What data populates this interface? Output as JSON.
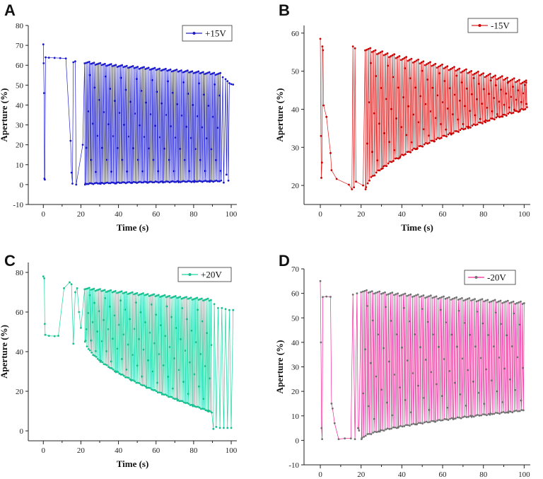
{
  "chart_data": [
    {
      "panel": "A",
      "type": "line",
      "legend": "+15V",
      "color": "#2222cc",
      "marker_color": "#1a1acc",
      "xlabel": "Time (s)",
      "ylabel": "Aperture (%)",
      "xlim": [
        -8,
        103
      ],
      "ylim": [
        -10,
        80
      ],
      "xticks": [
        0,
        20,
        40,
        60,
        80,
        100
      ],
      "yticks": [
        -10,
        0,
        10,
        20,
        30,
        40,
        50,
        60,
        70,
        80
      ],
      "start_points": [
        [
          0,
          70.5
        ],
        [
          0.2,
          61
        ],
        [
          0.4,
          46
        ],
        [
          0.6,
          3
        ],
        [
          0.8,
          2.5
        ],
        [
          1.2,
          64
        ],
        [
          3,
          63.8
        ],
        [
          6,
          63.7
        ],
        [
          9,
          63.6
        ],
        [
          12,
          63.4
        ],
        [
          14.5,
          22
        ],
        [
          15,
          6
        ],
        [
          15.5,
          0.5
        ],
        [
          16,
          61.5
        ],
        [
          17,
          62
        ],
        [
          17.5,
          0
        ],
        [
          21,
          20
        ]
      ],
      "osc": {
        "start": 22,
        "end": 95,
        "period": 0.83,
        "hi_start": 61.5,
        "hi_end": 55.5,
        "lo_start": 0,
        "lo_end": 1.5
      },
      "tail_points": [
        [
          95.5,
          54
        ],
        [
          96,
          1
        ],
        [
          97,
          53
        ],
        [
          97.5,
          5
        ],
        [
          98,
          52
        ],
        [
          98.5,
          2
        ],
        [
          99,
          51
        ],
        [
          100,
          50.5
        ],
        [
          101,
          50.3
        ]
      ]
    },
    {
      "panel": "B",
      "type": "line",
      "legend": "-15V",
      "color": "#e02020",
      "marker_color": "#cc0000",
      "xlabel": "Time (s)",
      "ylabel": "Aperture (%)",
      "xlim": [
        -8,
        103
      ],
      "ylim": [
        15,
        62
      ],
      "xticks": [
        0,
        20,
        40,
        60,
        80,
        100
      ],
      "yticks": [
        20,
        30,
        40,
        50,
        60
      ],
      "start_points": [
        [
          0,
          58.5
        ],
        [
          0.3,
          33
        ],
        [
          0.5,
          22
        ],
        [
          0.8,
          26
        ],
        [
          1,
          56.5
        ],
        [
          1.3,
          55.5
        ],
        [
          1.6,
          41
        ],
        [
          3,
          38
        ],
        [
          5,
          28.5
        ],
        [
          5.5,
          24
        ],
        [
          8,
          21.7
        ],
        [
          14,
          20.2
        ],
        [
          15.5,
          19
        ],
        [
          16,
          56.5
        ],
        [
          16.5,
          19.5
        ],
        [
          17,
          56
        ],
        [
          17.5,
          21
        ],
        [
          21,
          20
        ]
      ],
      "osc": {
        "start": 22,
        "end": 101,
        "period": 0.84,
        "hi_start": 56,
        "hi_end": 47,
        "lo_start": 19,
        "lo_end": 40
      },
      "tail_points": [
        [
          101,
          47
        ]
      ]
    },
    {
      "panel": "C",
      "type": "line",
      "legend": "+20V",
      "color": "#1ed6a0",
      "marker_color": "#16c090",
      "xlabel": "Time (s)",
      "ylabel": "Aperture (%)",
      "xlim": [
        -8,
        103
      ],
      "ylim": [
        -5,
        85
      ],
      "xticks": [
        0,
        20,
        40,
        60,
        80,
        100
      ],
      "yticks": [
        0,
        20,
        40,
        60,
        80
      ],
      "start_points": [
        [
          0,
          78
        ],
        [
          0.5,
          77
        ],
        [
          0.8,
          54
        ],
        [
          1,
          48.5
        ],
        [
          3,
          48
        ],
        [
          6,
          47.8
        ],
        [
          8,
          48
        ],
        [
          11,
          72
        ],
        [
          14,
          75
        ],
        [
          15,
          74
        ],
        [
          16,
          44
        ],
        [
          17,
          70
        ],
        [
          18,
          72
        ],
        [
          19,
          60
        ],
        [
          20,
          52
        ]
      ],
      "osc": {
        "start": 22,
        "end": 90,
        "period": 0.82,
        "hi_start": 72,
        "hi_end": 66,
        "lo_start": 45,
        "lo_end": 9
      },
      "tail_points": [
        [
          90.5,
          1
        ],
        [
          91,
          64
        ],
        [
          92,
          2
        ],
        [
          93,
          62
        ],
        [
          94,
          1.5
        ],
        [
          95,
          62
        ],
        [
          96,
          1.5
        ],
        [
          97,
          61.5
        ],
        [
          98,
          1.5
        ],
        [
          99,
          61
        ],
        [
          100,
          1.5
        ],
        [
          101,
          61
        ]
      ]
    },
    {
      "panel": "D",
      "type": "line",
      "legend": "-20V",
      "color": "#ee2a9a",
      "marker_color": "#707070",
      "xlabel": "Time (s)",
      "ylabel": "Aperture (%)",
      "xlim": [
        -8,
        103
      ],
      "ylim": [
        -10,
        70
      ],
      "xticks": [
        0,
        20,
        40,
        60,
        80,
        100
      ],
      "yticks": [
        -10,
        0,
        10,
        20,
        30,
        40,
        50,
        60,
        70
      ],
      "start_points": [
        [
          0,
          65
        ],
        [
          0.3,
          40
        ],
        [
          0.6,
          5
        ],
        [
          0.9,
          0.5
        ],
        [
          1.2,
          58.5
        ],
        [
          3,
          58.7
        ],
        [
          5,
          58.6
        ],
        [
          5.5,
          15
        ],
        [
          6,
          13
        ],
        [
          7,
          7
        ],
        [
          9,
          0.5
        ],
        [
          12,
          0.8
        ],
        [
          15,
          0.8
        ],
        [
          16,
          59.5
        ],
        [
          17,
          0.5
        ],
        [
          18,
          60
        ],
        [
          18.5,
          5
        ],
        [
          19,
          4
        ]
      ],
      "osc": {
        "start": 20,
        "end": 100,
        "period": 0.9,
        "hi_start": 61,
        "hi_end": 56,
        "lo_start": 0.5,
        "lo_end": 12
      },
      "tail_points": [
        [
          100,
          56
        ]
      ]
    }
  ]
}
